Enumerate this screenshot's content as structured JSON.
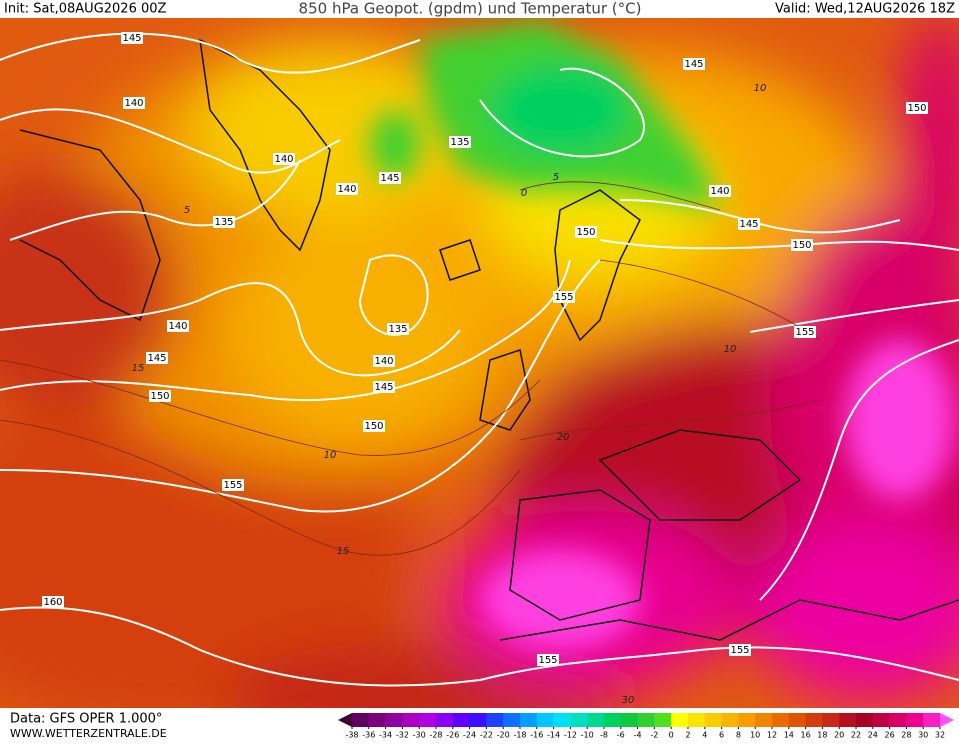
{
  "header": {
    "init": "Init: Sat,08AUG2026 00Z",
    "title": "850 hPa Geopot. (gpdm) und Temperatur (°C)",
    "valid": "Valid: Wed,12AUG2026 18Z"
  },
  "footer": {
    "data": "Data: GFS OPER 1.000°",
    "site": "WWW.WETTERZENTRALE.DE"
  },
  "geopotential_labels": [
    "145",
    "140",
    "140",
    "140",
    "145",
    "135",
    "135",
    "140",
    "145",
    "150",
    "135",
    "140",
    "145",
    "150",
    "155",
    "160",
    "155",
    "155",
    "150",
    "155",
    "140",
    "145",
    "150",
    "155",
    "145",
    "150"
  ],
  "temperature_labels": [
    "10",
    "5",
    "15",
    "10",
    "15",
    "20",
    "30",
    "0",
    "5",
    "10"
  ],
  "colorbar": {
    "ticks": [
      -38,
      -36,
      -34,
      -32,
      -30,
      -28,
      -26,
      -24,
      -22,
      -20,
      -18,
      -16,
      -14,
      -12,
      -10,
      -8,
      -6,
      -4,
      -2,
      0,
      2,
      4,
      6,
      8,
      10,
      12,
      14,
      16,
      18,
      20,
      22,
      24,
      26,
      28,
      30,
      32
    ],
    "colors": [
      "#400030",
      "#600060",
      "#7a0080",
      "#9000a0",
      "#a800c0",
      "#b000e0",
      "#8a00f0",
      "#6000f8",
      "#3810ff",
      "#2040ff",
      "#1070ff",
      "#00a0ff",
      "#00c8ff",
      "#00e0f0",
      "#00e0c0",
      "#00d890",
      "#00d060",
      "#10c840",
      "#30d030",
      "#50e020",
      "#ffff00",
      "#f8e400",
      "#f8cc00",
      "#f8b400",
      "#f89c00",
      "#f08400",
      "#e86c00",
      "#e05400",
      "#d43c10",
      "#c82818",
      "#b81020",
      "#a80020",
      "#c00040",
      "#d80068",
      "#ec0090",
      "#f820c0",
      "#ff50ff"
    ]
  }
}
